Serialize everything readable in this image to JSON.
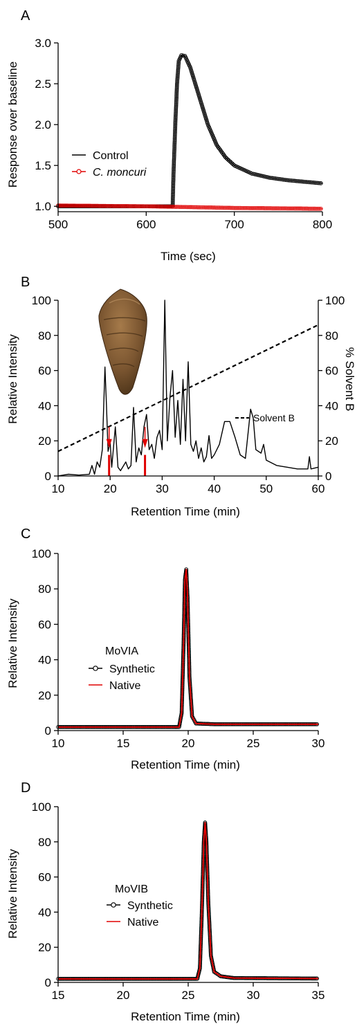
{
  "chart_data": [
    {
      "panel": "A",
      "type": "line",
      "xlabel": "Time (sec)",
      "ylabel": "Response over baseline",
      "xlim": [
        500,
        800
      ],
      "ylim": [
        0.9,
        3.0
      ],
      "xticks": [
        500,
        600,
        700,
        800
      ],
      "yticks": [
        1.0,
        1.5,
        2.0,
        2.5,
        3.0
      ],
      "ytick_labels": [
        "1.0",
        "1.5",
        "2.0",
        "2.5",
        "3.0"
      ],
      "legend_placement": "center-left",
      "series": [
        {
          "name": "Control",
          "color": "#000000",
          "marker": "open-circle",
          "points": [
            [
              500,
              1.0
            ],
            [
              630,
              1.0
            ],
            [
              631,
              1.4
            ],
            [
              633,
              2.0
            ],
            [
              635,
              2.5
            ],
            [
              637,
              2.78
            ],
            [
              640,
              2.85
            ],
            [
              644,
              2.84
            ],
            [
              650,
              2.7
            ],
            [
              660,
              2.35
            ],
            [
              670,
              2.0
            ],
            [
              680,
              1.75
            ],
            [
              690,
              1.6
            ],
            [
              700,
              1.5
            ],
            [
              720,
              1.4
            ],
            [
              740,
              1.35
            ],
            [
              760,
              1.32
            ],
            [
              780,
              1.3
            ],
            [
              800,
              1.28
            ]
          ]
        },
        {
          "name": "C. moncuri",
          "color": "#e00000",
          "marker": "open-circle",
          "points": [
            [
              500,
              1.01
            ],
            [
              550,
              1.005
            ],
            [
              600,
              1.0
            ],
            [
              650,
              0.99
            ],
            [
              700,
              0.98
            ],
            [
              750,
              0.975
            ],
            [
              800,
              0.97
            ]
          ]
        }
      ]
    },
    {
      "panel": "B",
      "type": "line",
      "xlabel": "Retention Time (min)",
      "ylabel": "Relative Intensity",
      "y2label": "% Solvent B",
      "xlim": [
        10,
        60
      ],
      "ylim": [
        0,
        100
      ],
      "y2lim": [
        0,
        100
      ],
      "xticks": [
        10,
        20,
        30,
        40,
        50,
        60
      ],
      "yticks": [
        0,
        20,
        40,
        60,
        80,
        100
      ],
      "y2ticks": [
        0,
        20,
        40,
        60,
        80,
        100
      ],
      "legend_placement": "right",
      "series": [
        {
          "name": "",
          "color": "#000000",
          "points": [
            [
              10,
              0
            ],
            [
              11,
              0.5
            ],
            [
              12,
              1
            ],
            [
              14,
              0.5
            ],
            [
              16,
              1
            ],
            [
              16.5,
              6
            ],
            [
              17,
              1
            ],
            [
              17.5,
              8
            ],
            [
              18,
              5
            ],
            [
              18.5,
              15
            ],
            [
              19,
              62
            ],
            [
              19.3,
              40
            ],
            [
              19.6,
              14
            ],
            [
              20,
              19
            ],
            [
              20.3,
              5
            ],
            [
              21,
              28
            ],
            [
              21.5,
              5
            ],
            [
              22,
              3
            ],
            [
              23,
              8
            ],
            [
              23.5,
              4
            ],
            [
              24,
              6
            ],
            [
              24.5,
              39
            ],
            [
              25,
              8
            ],
            [
              25.5,
              16
            ],
            [
              26,
              12
            ],
            [
              26.5,
              28
            ],
            [
              27,
              35
            ],
            [
              27.5,
              15
            ],
            [
              28,
              18
            ],
            [
              28.5,
              10
            ],
            [
              29,
              22
            ],
            [
              29.5,
              26
            ],
            [
              30,
              15
            ],
            [
              30.5,
              100
            ],
            [
              31,
              20
            ],
            [
              31.5,
              45
            ],
            [
              32,
              60
            ],
            [
              32.5,
              22
            ],
            [
              33,
              43
            ],
            [
              33.5,
              18
            ],
            [
              34,
              55
            ],
            [
              34.5,
              20
            ],
            [
              35,
              65
            ],
            [
              35.5,
              18
            ],
            [
              36,
              14
            ],
            [
              36.5,
              20
            ],
            [
              37,
              10
            ],
            [
              37.5,
              16
            ],
            [
              38,
              8
            ],
            [
              38.5,
              11
            ],
            [
              39,
              23
            ],
            [
              39.5,
              10
            ],
            [
              40,
              12
            ],
            [
              41,
              18
            ],
            [
              42,
              31
            ],
            [
              43,
              31
            ],
            [
              44,
              22
            ],
            [
              45,
              12
            ],
            [
              46,
              10
            ],
            [
              47,
              38
            ],
            [
              47.5,
              33
            ],
            [
              48,
              15
            ],
            [
              49,
              13
            ],
            [
              49.5,
              18
            ],
            [
              50,
              9
            ],
            [
              52,
              6
            ],
            [
              54,
              5
            ],
            [
              56,
              4
            ],
            [
              58,
              4
            ],
            [
              58.3,
              11
            ],
            [
              58.6,
              4
            ],
            [
              60,
              5
            ]
          ]
        },
        {
          "name": "Solvent B",
          "color": "#000000",
          "dashed": true,
          "axis": "y2",
          "points": [
            [
              10,
              14
            ],
            [
              60,
              86
            ]
          ]
        }
      ],
      "markers": [
        {
          "x": 19.8,
          "color": "#e00000"
        },
        {
          "x": 26.7,
          "color": "#e00000"
        }
      ]
    },
    {
      "panel": "C",
      "type": "line",
      "xlabel": "Retention Time (min)",
      "ylabel": "Relative Intensity",
      "xlim": [
        10,
        30
      ],
      "ylim": [
        0,
        100
      ],
      "xticks": [
        10,
        15,
        20,
        25,
        30
      ],
      "yticks": [
        0,
        20,
        40,
        60,
        80,
        100
      ],
      "legend_title": "MoVIA",
      "legend_placement": "center-left",
      "series": [
        {
          "name": "Synthetic",
          "color": "#000000",
          "marker": "open-circle",
          "points": [
            [
              10,
              2
            ],
            [
              19.3,
              2
            ],
            [
              19.5,
              10
            ],
            [
              19.65,
              50
            ],
            [
              19.75,
              85
            ],
            [
              19.85,
              91
            ],
            [
              19.95,
              75
            ],
            [
              20.1,
              30
            ],
            [
              20.3,
              8
            ],
            [
              20.6,
              4
            ],
            [
              22,
              3.6
            ],
            [
              30,
              3.6
            ]
          ]
        },
        {
          "name": "Native",
          "color": "#e00000",
          "points": [
            [
              10,
              2
            ],
            [
              19.3,
              2
            ],
            [
              19.5,
              10
            ],
            [
              19.65,
              50
            ],
            [
              19.75,
              85
            ],
            [
              19.85,
              91
            ],
            [
              19.95,
              75
            ],
            [
              20.1,
              30
            ],
            [
              20.3,
              8
            ],
            [
              20.6,
              4
            ],
            [
              22,
              3.6
            ],
            [
              30,
              3.6
            ]
          ]
        }
      ]
    },
    {
      "panel": "D",
      "type": "line",
      "xlabel": "Retention Time (min)",
      "ylabel": "Relative Intensity",
      "xlim": [
        15,
        35
      ],
      "ylim": [
        0,
        100
      ],
      "xticks": [
        15,
        20,
        25,
        30,
        35
      ],
      "yticks": [
        0,
        20,
        40,
        60,
        80,
        100
      ],
      "legend_title": "MoVIB",
      "legend_placement": "center-left",
      "series": [
        {
          "name": "Synthetic",
          "color": "#000000",
          "marker": "open-circle",
          "points": [
            [
              15,
              2
            ],
            [
              25.7,
              2
            ],
            [
              25.9,
              8
            ],
            [
              26.05,
              40
            ],
            [
              26.2,
              80
            ],
            [
              26.3,
              91
            ],
            [
              26.4,
              80
            ],
            [
              26.55,
              45
            ],
            [
              26.75,
              15
            ],
            [
              27,
              6
            ],
            [
              27.5,
              3.5
            ],
            [
              28.5,
              2.5
            ],
            [
              35,
              2.2
            ]
          ]
        },
        {
          "name": "Native",
          "color": "#e00000",
          "points": [
            [
              15,
              2
            ],
            [
              25.7,
              2
            ],
            [
              25.9,
              8
            ],
            [
              26.05,
              40
            ],
            [
              26.2,
              80
            ],
            [
              26.3,
              91
            ],
            [
              26.4,
              80
            ],
            [
              26.55,
              45
            ],
            [
              26.75,
              15
            ],
            [
              27,
              6
            ],
            [
              27.5,
              3.5
            ],
            [
              28.5,
              2.5
            ],
            [
              35,
              2.2
            ]
          ]
        }
      ]
    }
  ]
}
